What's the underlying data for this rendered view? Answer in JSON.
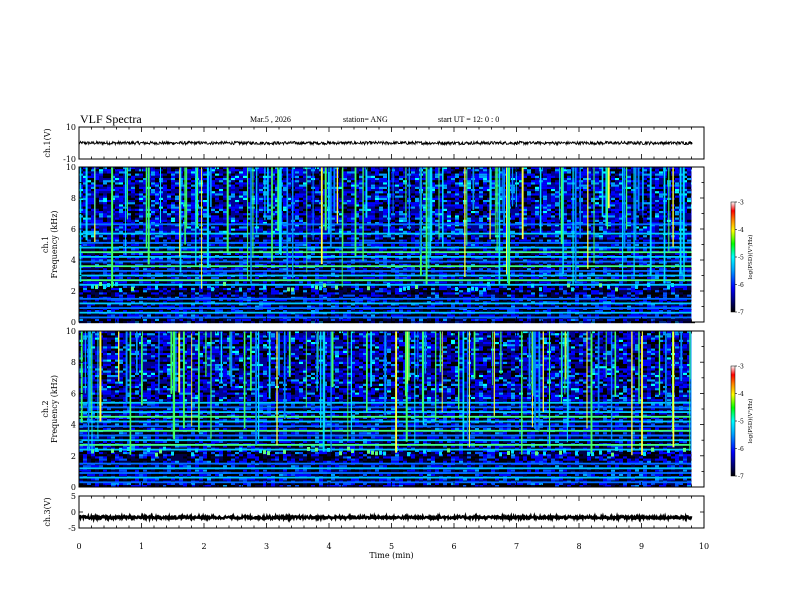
{
  "header": {
    "title": "VLF Spectra",
    "date": "Mar.5 , 2026",
    "station": "station= ANG",
    "start": "start UT =  12: 0  : 0"
  },
  "chart_data": [
    {
      "type": "line",
      "name": "ch1-waveform",
      "ylabel": "ch.1(V)",
      "ylim": [
        -10,
        10
      ],
      "yticks": [
        "10",
        "-10"
      ],
      "xlim": [
        0,
        10
      ],
      "series": [
        {
          "name": "ch.1",
          "mean": 0,
          "amplitude": 1
        }
      ]
    },
    {
      "type": "heatmap",
      "name": "ch1-spectrogram",
      "ylabel": "ch.1\nFrequency (kHz)",
      "ylim": [
        0,
        10
      ],
      "yticks": [
        "0",
        "2",
        "4",
        "6",
        "8",
        "10"
      ],
      "xlim": [
        0,
        10
      ],
      "data_end_min": 9.8,
      "hum_lines_khz": [
        0.3,
        0.6,
        0.9,
        1.2,
        1.5,
        2.4,
        2.7,
        3.0,
        3.3,
        3.6,
        3.9,
        4.2,
        4.5,
        4.8,
        5.1,
        5.7,
        6.3
      ],
      "colorbar": {
        "label": "log(PSD)(V²/Hz)",
        "ticks": [
          "-3",
          "-4",
          "-5",
          "-6",
          "-7"
        ],
        "range": [
          -7,
          -3
        ]
      }
    },
    {
      "type": "heatmap",
      "name": "ch2-spectrogram",
      "ylabel": "ch.2\nFrequency (kHz)",
      "ylim": [
        0,
        10
      ],
      "yticks": [
        "0",
        "2",
        "4",
        "6",
        "8",
        "10"
      ],
      "xlim": [
        0,
        10
      ],
      "data_end_min": 9.8,
      "hum_lines_khz": [
        0.3,
        0.6,
        0.9,
        1.2,
        1.5,
        2.4,
        2.7,
        3.0,
        3.3,
        3.6,
        3.9,
        4.2,
        4.5,
        4.8,
        5.1,
        5.4
      ],
      "colorbar": {
        "label": "log(PSD)(V²/Hz)",
        "ticks": [
          "-3",
          "-4",
          "-5",
          "-6",
          "-7"
        ],
        "range": [
          -7,
          -3
        ]
      }
    },
    {
      "type": "line",
      "name": "ch3-waveform",
      "ylabel": "ch.3(V)",
      "ylim": [
        -5,
        5
      ],
      "yticks": [
        "5",
        "0",
        "-5"
      ],
      "xlim": [
        0,
        10
      ],
      "series": [
        {
          "name": "ch.3",
          "mean": -1.7,
          "amplitude": 0.4
        }
      ]
    }
  ],
  "xaxis": {
    "label": "Time (min)",
    "ticks": [
      "0",
      "1",
      "2",
      "3",
      "4",
      "5",
      "6",
      "7",
      "8",
      "9",
      "10"
    ]
  }
}
